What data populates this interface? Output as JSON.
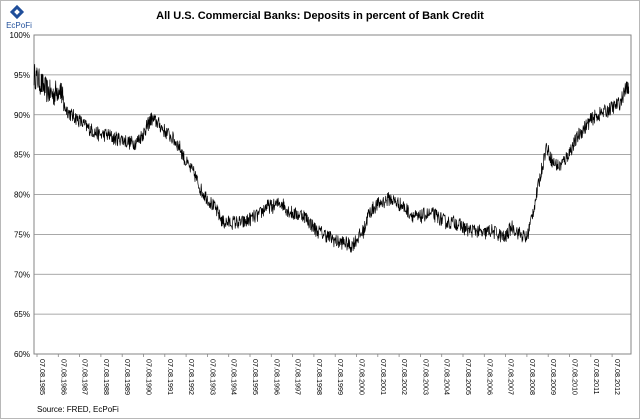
{
  "logo": {
    "text": "EcPoFi",
    "color": "#1f4e9a"
  },
  "chart_data": {
    "type": "line",
    "title": "All U.S. Commercial Banks: Deposits in percent of Bank Credit",
    "source": "Source: FRED, EcPoFi",
    "xlabel": "",
    "ylabel": "",
    "ylim": [
      60,
      100
    ],
    "y_ticks": [
      "60%",
      "65%",
      "70%",
      "75%",
      "80%",
      "85%",
      "90%",
      "95%",
      "100%"
    ],
    "y_tick_values": [
      60,
      65,
      70,
      75,
      80,
      85,
      90,
      95,
      100
    ],
    "x_ticks": [
      "07.08.1985",
      "07.08.1986",
      "07.08.1987",
      "07.08.1988",
      "07.08.1989",
      "07.08.1990",
      "07.08.1991",
      "07.08.1992",
      "07.08.1993",
      "07.08.1994",
      "07.08.1995",
      "07.08.1996",
      "07.08.1997",
      "07.08.1998",
      "07.08.1999",
      "07.08.2000",
      "07.08.2001",
      "07.08.2002",
      "07.08.2003",
      "07.08.2004",
      "07.08.2005",
      "07.08.2006",
      "07.08.2007",
      "07.08.2008",
      "07.08.2009",
      "07.08.2010",
      "07.08.2011",
      "07.08.2012"
    ],
    "x_range": [
      1985.6,
      2013.1
    ],
    "grid": true,
    "line_color": "#000000",
    "series": [
      {
        "x": [
          1985.6,
          1985.9,
          1986.2,
          1986.5,
          1986.8,
          1987.0,
          1987.3,
          1987.6,
          1988.0,
          1988.3,
          1988.6,
          1989.0,
          1989.3,
          1989.6,
          1990.0,
          1990.3,
          1990.6,
          1990.8,
          1991.0,
          1991.3,
          1991.6,
          1992.0,
          1992.3,
          1992.6,
          1993.0,
          1993.3,
          1993.6,
          1994.0,
          1994.3,
          1994.6,
          1995.0,
          1995.3,
          1995.6,
          1996.0,
          1996.3,
          1996.6,
          1997.0,
          1997.3,
          1997.6,
          1998.0,
          1998.3,
          1998.6,
          1999.0,
          1999.3,
          1999.6,
          1999.9,
          2000.2,
          2000.5,
          2000.8,
          2001.0,
          2001.3,
          2001.6,
          2002.0,
          2002.3,
          2002.6,
          2003.0,
          2003.3,
          2003.6,
          2004.0,
          2004.3,
          2004.6,
          2005.0,
          2005.3,
          2005.6,
          2006.0,
          2006.3,
          2006.6,
          2007.0,
          2007.3,
          2007.6,
          2008.0,
          2008.3,
          2008.6,
          2008.9,
          2009.2,
          2009.5,
          2009.8,
          2010.1,
          2010.4,
          2010.7,
          2011.0,
          2011.3,
          2011.6,
          2012.0,
          2012.3,
          2012.6,
          2012.9,
          2013.0
        ],
        "y": [
          95,
          94,
          93,
          92.5,
          93.5,
          91,
          90,
          89.5,
          88.5,
          88,
          87.5,
          87.5,
          87,
          87,
          86.5,
          86.5,
          87.5,
          88.5,
          89.5,
          89,
          88,
          87,
          86,
          84,
          82.5,
          80.5,
          79.5,
          78,
          76.5,
          76.5,
          76.5,
          76.5,
          77,
          77.5,
          78.5,
          78.5,
          79,
          78,
          77.5,
          77.5,
          76.5,
          75.5,
          75,
          74.5,
          74,
          74,
          73.5,
          74.5,
          75.5,
          77.5,
          78.5,
          79,
          79.5,
          79,
          78.5,
          77.5,
          77,
          77.5,
          77.5,
          77,
          76.5,
          76.5,
          76,
          75.5,
          75.5,
          75,
          75.5,
          75,
          74.5,
          76,
          75,
          74.5,
          78,
          82,
          86,
          84,
          83.5,
          84.5,
          86,
          87.5,
          88.5,
          89.5,
          90,
          90.5,
          91,
          91.5,
          93.5,
          93
        ]
      }
    ]
  }
}
